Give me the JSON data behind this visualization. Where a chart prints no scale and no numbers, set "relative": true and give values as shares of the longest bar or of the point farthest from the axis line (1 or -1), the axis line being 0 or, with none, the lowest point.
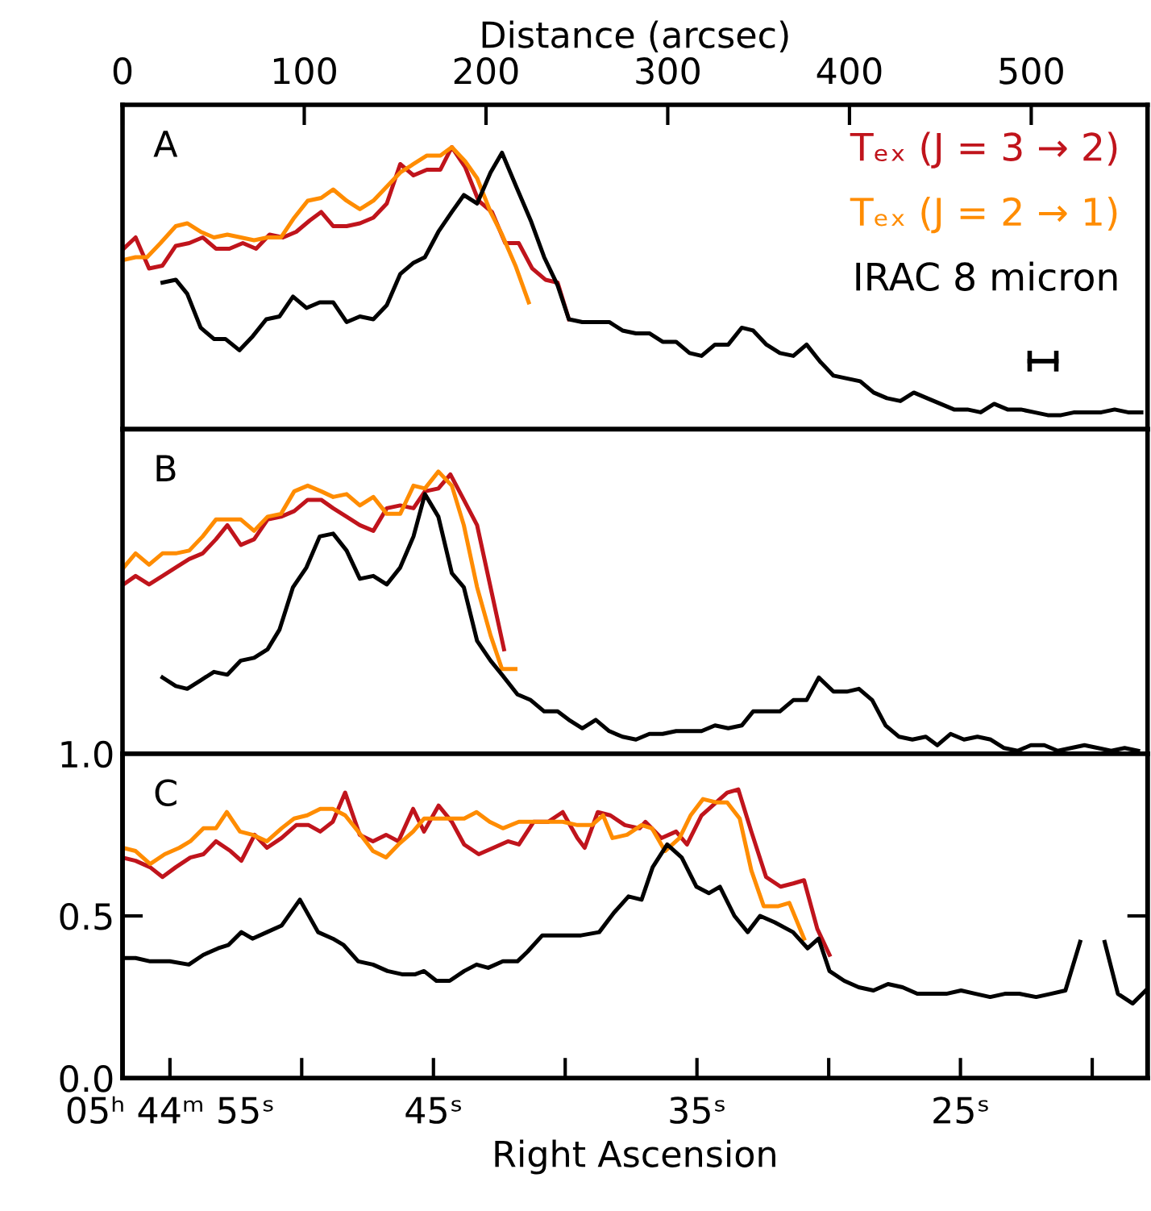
{
  "chart_data": [
    {
      "type": "line",
      "relative": true,
      "xlabel": "Distance (arcsec)",
      "xlim": [
        0,
        564
      ],
      "xticks": [
        0,
        100,
        200,
        300,
        400,
        500
      ],
      "tick_labels": "x",
      "annotations": [
        "A"
      ],
      "series": [
        {
          "name": "Tₑₓ (J = 3 → 2)",
          "color": "#c0141c",
          "x": [
            0.6,
            7.2,
            14.6,
            22.0,
            29.3,
            36.7,
            44.1,
            51.4,
            58.8,
            66.2,
            73.5,
            80.9,
            88.3,
            95.6,
            103.0,
            109.3,
            115.9,
            123.3,
            130.6,
            138.0,
            145.4,
            152.8,
            160.1,
            167.5,
            174.9,
            181.2,
            188.5,
            195.9,
            203.3,
            210.6,
            218.0,
            225.4,
            232.7,
            239.4,
            245.6
          ],
          "values": [
            0.64,
            0.68,
            0.57,
            0.58,
            0.65,
            0.66,
            0.68,
            0.64,
            0.64,
            0.66,
            0.64,
            0.69,
            0.68,
            0.7,
            0.74,
            0.77,
            0.72,
            0.72,
            0.73,
            0.75,
            0.8,
            0.94,
            0.9,
            0.92,
            0.92,
            1.0,
            0.93,
            0.81,
            0.77,
            0.66,
            0.66,
            0.57,
            0.53,
            0.52,
            0.39
          ]
        },
        {
          "name": "Tₑₓ (J = 2 → 1)",
          "color": "#ff8c00",
          "x": [
            0.6,
            7.2,
            13.5,
            20.9,
            29.3,
            35.6,
            43.0,
            50.3,
            57.7,
            65.1,
            72.4,
            79.8,
            87.2,
            94.5,
            101.9,
            109.3,
            115.9,
            123.3,
            130.6,
            138.0,
            145.4,
            152.8,
            160.1,
            167.5,
            174.9,
            181.2,
            188.5,
            195.1,
            202.5,
            208.8,
            216.2,
            223.5
          ],
          "values": [
            0.6,
            0.61,
            0.61,
            0.66,
            0.72,
            0.73,
            0.7,
            0.68,
            0.69,
            0.68,
            0.67,
            0.68,
            0.68,
            0.75,
            0.81,
            0.82,
            0.85,
            0.81,
            0.78,
            0.81,
            0.86,
            0.91,
            0.94,
            0.97,
            0.97,
            1.0,
            0.95,
            0.89,
            0.77,
            0.69,
            0.58,
            0.45
          ]
        },
        {
          "name": "IRAC 8 micron",
          "color": "#000000",
          "x": [
            22.0,
            29.3,
            35.6,
            43.0,
            50.3,
            56.6,
            64.3,
            71.7,
            79.1,
            86.4,
            93.8,
            101.2,
            108.5,
            115.9,
            123.3,
            130.6,
            138.0,
            145.4,
            152.8,
            160.1,
            166.4,
            173.8,
            181.2,
            187.8,
            195.1,
            202.5,
            208.8,
            217.3,
            224.6,
            232.0,
            239.4,
            245.6,
            253.0,
            260.4,
            267.8,
            275.1,
            282.5,
            289.9,
            297.2,
            304.6,
            312.0,
            318.6,
            326.0,
            333.3,
            340.7,
            347.0,
            354.3,
            361.7,
            369.1,
            376.4,
            383.8,
            391.2,
            398.5,
            405.9,
            413.3,
            420.6,
            428.0,
            435.4,
            442.7,
            450.1,
            457.5,
            464.9,
            472.2,
            479.6,
            487.0,
            494.3,
            501.7,
            509.1,
            516.4,
            523.8,
            531.2,
            538.5,
            545.9,
            553.3,
            560.6
          ],
          "values": [
            0.52,
            0.53,
            0.48,
            0.36,
            0.32,
            0.32,
            0.28,
            0.33,
            0.39,
            0.4,
            0.47,
            0.43,
            0.45,
            0.45,
            0.38,
            0.4,
            0.39,
            0.44,
            0.55,
            0.59,
            0.61,
            0.7,
            0.77,
            0.83,
            0.8,
            0.91,
            0.98,
            0.85,
            0.74,
            0.61,
            0.51,
            0.39,
            0.38,
            0.38,
            0.38,
            0.35,
            0.34,
            0.34,
            0.31,
            0.31,
            0.27,
            0.26,
            0.3,
            0.3,
            0.36,
            0.35,
            0.3,
            0.27,
            0.26,
            0.3,
            0.24,
            0.19,
            0.18,
            0.17,
            0.13,
            0.11,
            0.1,
            0.13,
            0.11,
            0.09,
            0.07,
            0.07,
            0.06,
            0.09,
            0.07,
            0.07,
            0.06,
            0.05,
            0.05,
            0.06,
            0.06,
            0.06,
            0.07,
            0.06,
            0.06
          ]
        }
      ]
    },
    {
      "type": "line",
      "relative": true,
      "xlim": [
        0,
        564
      ],
      "tick_labels": false,
      "annotations": [
        "B"
      ],
      "series": [
        {
          "color": "#c0141c",
          "x": [
            0.6,
            7.2,
            14.6,
            22.0,
            29.3,
            36.7,
            44.1,
            51.4,
            57.7,
            65.1,
            72.4,
            79.8,
            87.2,
            94.5,
            101.9,
            109.3,
            115.9,
            123.3,
            130.6,
            138.0,
            145.4,
            152.8,
            160.1,
            166.4,
            173.8,
            180.4,
            187.8,
            195.1,
            202.5,
            209.9
          ],
          "values": [
            0.6,
            0.63,
            0.6,
            0.63,
            0.66,
            0.69,
            0.71,
            0.76,
            0.81,
            0.74,
            0.76,
            0.83,
            0.84,
            0.86,
            0.9,
            0.9,
            0.87,
            0.84,
            0.81,
            0.79,
            0.87,
            0.88,
            0.87,
            0.93,
            0.94,
            0.99,
            0.9,
            0.81,
            0.59,
            0.37
          ]
        },
        {
          "color": "#ff8c00",
          "x": [
            0.6,
            7.2,
            14.6,
            22.0,
            29.3,
            36.7,
            44.1,
            51.4,
            58.8,
            65.1,
            72.4,
            79.8,
            87.2,
            94.5,
            101.9,
            109.3,
            115.9,
            123.3,
            130.6,
            138.0,
            145.4,
            152.8,
            160.1,
            166.4,
            173.8,
            181.2,
            187.8,
            195.1,
            202.5,
            208.8,
            216.2
          ],
          "values": [
            0.66,
            0.71,
            0.67,
            0.71,
            0.71,
            0.72,
            0.77,
            0.83,
            0.83,
            0.83,
            0.79,
            0.84,
            0.85,
            0.93,
            0.95,
            0.93,
            0.91,
            0.92,
            0.88,
            0.91,
            0.85,
            0.85,
            0.95,
            0.94,
            1.0,
            0.95,
            0.81,
            0.59,
            0.42,
            0.3,
            0.3
          ]
        },
        {
          "color": "#000000",
          "x": [
            22.0,
            29.3,
            35.6,
            43.0,
            50.3,
            57.7,
            65.1,
            72.4,
            79.8,
            86.4,
            93.8,
            101.2,
            108.5,
            115.9,
            123.3,
            130.6,
            138.0,
            145.4,
            152.8,
            160.1,
            166.4,
            173.8,
            181.2,
            187.8,
            195.1,
            202.5,
            208.8,
            217.3,
            224.6,
            232.0,
            239.4,
            245.6,
            253.0,
            260.4,
            267.8,
            275.1,
            282.5,
            289.9,
            297.2,
            304.6,
            312.0,
            318.6,
            326.0,
            333.3,
            340.7,
            347.0,
            354.3,
            361.7,
            369.1,
            376.4,
            383.1,
            391.2,
            398.5,
            405.2,
            412.5,
            419.9,
            427.3,
            434.6,
            442.0,
            448.3,
            455.6,
            463.0,
            470.4,
            477.7,
            485.1,
            492.5,
            499.8,
            507.2,
            514.6,
            521.9,
            529.3,
            536.7,
            544.0,
            551.4,
            558.8
          ],
          "values": [
            0.27,
            0.24,
            0.23,
            0.26,
            0.29,
            0.28,
            0.33,
            0.34,
            0.37,
            0.44,
            0.59,
            0.66,
            0.77,
            0.78,
            0.72,
            0.62,
            0.63,
            0.6,
            0.66,
            0.77,
            0.92,
            0.84,
            0.64,
            0.59,
            0.4,
            0.33,
            0.28,
            0.21,
            0.19,
            0.15,
            0.15,
            0.12,
            0.09,
            0.12,
            0.08,
            0.06,
            0.05,
            0.07,
            0.07,
            0.08,
            0.08,
            0.08,
            0.1,
            0.09,
            0.1,
            0.15,
            0.15,
            0.15,
            0.19,
            0.19,
            0.27,
            0.22,
            0.22,
            0.23,
            0.19,
            0.1,
            0.06,
            0.05,
            0.06,
            0.03,
            0.07,
            0.05,
            0.06,
            0.05,
            0.02,
            0.01,
            0.03,
            0.03,
            0.01,
            0.02,
            0.03,
            0.02,
            0.01,
            0.02,
            0.01
          ]
        }
      ]
    },
    {
      "type": "line",
      "x2label": "Right Ascension",
      "xlim": [
        0,
        564
      ],
      "x2lim": [
        56.8,
        17.9
      ],
      "x2ticks": [
        {
          "value": 55,
          "label": "05ʰ 44ᵐ 55ˢ"
        },
        {
          "value": 50,
          "label": null
        },
        {
          "value": 45,
          "label": "45ˢ"
        },
        {
          "value": 40,
          "label": null
        },
        {
          "value": 35,
          "label": "35ˢ"
        },
        {
          "value": 30,
          "label": null
        },
        {
          "value": 25,
          "label": "25ˢ"
        },
        {
          "value": 20,
          "label": null
        }
      ],
      "ylim": [
        0,
        1
      ],
      "yticks": [
        {
          "value": 0,
          "label": "0.0"
        },
        {
          "value": 0.5,
          "label": "0.5"
        },
        {
          "value": 1,
          "label": "1.0"
        }
      ],
      "tick_labels": "y",
      "annotations": [
        "C"
      ],
      "series": [
        {
          "color": "#c0141c",
          "x": [
            0,
            7.2,
            15.2,
            22.0,
            29.3,
            37.3,
            44.5,
            51.4,
            59.4,
            65.4,
            72.7,
            79.5,
            87.5,
            95.6,
            102.4,
            108.8,
            115.7,
            122.5,
            130.5,
            137.8,
            145.0,
            151.8,
            159.9,
            165.9,
            173.9,
            181.2,
            188.0,
            196.0,
            204.1,
            212.1,
            218.1,
            226.2,
            234.2,
            242.2,
            250.3,
            254.3,
            261.5,
            268.4,
            276.4,
            284.5,
            287.7,
            296.5,
            304.6,
            310.6,
            318.6,
            326.7,
            332.7,
            338.8,
            346.0,
            354.1,
            362.1,
            369.0,
            375.0,
            382.3,
            389.0
          ],
          "values": [
            0.68,
            0.67,
            0.65,
            0.62,
            0.65,
            0.68,
            0.69,
            0.73,
            0.7,
            0.67,
            0.75,
            0.71,
            0.74,
            0.78,
            0.78,
            0.76,
            0.79,
            0.88,
            0.75,
            0.73,
            0.75,
            0.73,
            0.83,
            0.76,
            0.84,
            0.79,
            0.72,
            0.69,
            0.71,
            0.73,
            0.72,
            0.79,
            0.79,
            0.82,
            0.74,
            0.71,
            0.82,
            0.81,
            0.78,
            0.77,
            0.79,
            0.74,
            0.76,
            0.72,
            0.81,
            0.85,
            0.88,
            0.89,
            0.76,
            0.62,
            0.59,
            0.6,
            0.61,
            0.46,
            0.38
          ]
        },
        {
          "color": "#ff8c00",
          "x": [
            0,
            7.2,
            15.2,
            23.2,
            31.3,
            37.3,
            44.5,
            51.4,
            57.4,
            64.6,
            71.5,
            79.5,
            87.5,
            94.4,
            101.6,
            108.8,
            115.7,
            122.5,
            129.7,
            137.8,
            145.0,
            151.8,
            159.9,
            165.9,
            173.1,
            181.2,
            188.0,
            194.8,
            202.0,
            209.3,
            218.1,
            226.2,
            234.2,
            242.2,
            250.3,
            258.3,
            264.4,
            269.6,
            277.6,
            285.6,
            291.3,
            298.5,
            306.5,
            312.6,
            319.4,
            326.7,
            332.7,
            339.6,
            346.0,
            352.8,
            360.9,
            366.9,
            375.0
          ],
          "values": [
            0.71,
            0.7,
            0.66,
            0.69,
            0.71,
            0.73,
            0.77,
            0.77,
            0.82,
            0.76,
            0.75,
            0.73,
            0.77,
            0.8,
            0.81,
            0.83,
            0.83,
            0.81,
            0.76,
            0.7,
            0.68,
            0.72,
            0.76,
            0.8,
            0.8,
            0.8,
            0.8,
            0.82,
            0.79,
            0.77,
            0.79,
            0.79,
            0.79,
            0.79,
            0.78,
            0.78,
            0.81,
            0.74,
            0.75,
            0.78,
            0.77,
            0.7,
            0.74,
            0.81,
            0.86,
            0.85,
            0.85,
            0.8,
            0.64,
            0.53,
            0.53,
            0.54,
            0.43
          ]
        },
        {
          "color": "#000000",
          "x": [
            0,
            7.2,
            15.2,
            26.0,
            36.5,
            44.5,
            52.6,
            58.2,
            65.4,
            71.5,
            79.5,
            87.5,
            97.6,
            107.6,
            115.7,
            121.7,
            129.7,
            137.8,
            145.8,
            153.8,
            161.1,
            165.9,
            172.7,
            180.0,
            188.0,
            194.8,
            201.2,
            209.3,
            217.3,
            222.9,
            231.0,
            243.0,
            252.3,
            262.3,
            270.4,
            278.4,
            285.6,
            291.7,
            299.7,
            307.7,
            315.8,
            322.6,
            328.7,
            336.7,
            344.0,
            350.8,
            358.9,
            368.9,
            377.0,
            383.0,
            389.0,
            397.1,
            405.1,
            413.2,
            421.2,
            429.2,
            437.3,
            445.3,
            453.3,
            461.4,
            469.4,
            477.4,
            485.5,
            493.5,
            502.7,
            510.8,
            518.8,
            526.9,
            533.0,
            540.4,
            547.7,
            555.8,
            563.0
          ],
          "values": [
            0.37,
            0.37,
            0.36,
            0.36,
            0.35,
            0.38,
            0.4,
            0.41,
            0.45,
            0.43,
            0.45,
            0.47,
            0.55,
            0.45,
            0.43,
            0.41,
            0.36,
            0.35,
            0.33,
            0.32,
            0.32,
            0.33,
            0.3,
            0.3,
            0.33,
            0.35,
            0.34,
            0.36,
            0.36,
            0.39,
            0.44,
            0.44,
            0.44,
            0.45,
            0.51,
            0.56,
            0.55,
            0.65,
            0.72,
            0.68,
            0.59,
            0.57,
            0.59,
            0.5,
            0.45,
            0.5,
            0.48,
            0.45,
            0.4,
            0.43,
            0.33,
            0.3,
            0.28,
            0.27,
            0.29,
            0.28,
            0.26,
            0.26,
            0.26,
            0.27,
            0.26,
            0.25,
            0.26,
            0.26,
            0.25,
            0.26,
            0.27,
            0.42,
            null,
            0.42,
            0.26,
            0.23,
            0.27
          ]
        }
      ]
    }
  ]
}
